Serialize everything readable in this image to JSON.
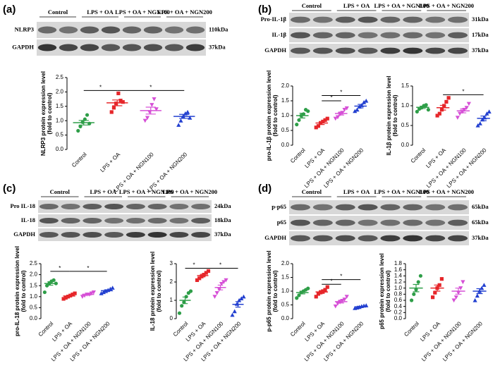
{
  "blots": [
    {
      "letter": "(a)",
      "groups": [
        "Control",
        "LPS + OA",
        "LPS + OA + NGN100",
        "LPS + OA + NGN200"
      ],
      "rows": [
        {
          "label": "NLRP3",
          "size": "110kDa"
        },
        {
          "label": "GAPDH",
          "size": "37kDa"
        }
      ]
    },
    {
      "letter": "(b)",
      "groups": [
        "Control",
        "LPS + OA",
        "LPS + OA + NGN100",
        "LPS + OA + NGN200"
      ],
      "rows": [
        {
          "label": "Pro-IL-1β",
          "size": "31kDa"
        },
        {
          "label": "IL-1β",
          "size": "17kDa"
        },
        {
          "label": "GAPDH",
          "size": "37kDa"
        }
      ]
    },
    {
      "letter": "(c)",
      "groups": [
        "Control",
        "LPS + OA",
        "LPS + OA + NGN100",
        "LPS + OA + NGN200"
      ],
      "rows": [
        {
          "label": "Pro IL-18",
          "size": "24kDa"
        },
        {
          "label": "IL-18",
          "size": "18kDa"
        },
        {
          "label": "GAPDH",
          "size": "37kDa"
        }
      ]
    },
    {
      "letter": "(d)",
      "groups": [
        "Control",
        "LPS + OA",
        "LPS + OA + NGN100",
        "LPS + OA + NGN200"
      ],
      "rows": [
        {
          "label": "p-p65",
          "size": "65kDa"
        },
        {
          "label": "p65",
          "size": "65kDa"
        },
        {
          "label": "GAPDH",
          "size": "37kDa"
        }
      ]
    }
  ],
  "chart_data": [
    {
      "type": "dot",
      "ylabel": [
        "NLRP3 protein expression level",
        "(fold to control)"
      ],
      "categories": [
        "Control",
        "LPS + OA",
        "LPS + OA + NGN100",
        "LPS + OA + NGN200"
      ],
      "colors": [
        "#2e9e48",
        "#e6262a",
        "#d650d6",
        "#2340d0"
      ],
      "markers": [
        "circle",
        "square",
        "triangle-down",
        "triangle"
      ],
      "values": [
        [
          0.65,
          0.8,
          0.95,
          1.05,
          1.2,
          0.9
        ],
        [
          1.3,
          1.45,
          1.6,
          1.95,
          1.7,
          1.65
        ],
        [
          1.0,
          1.1,
          1.3,
          1.55,
          1.75,
          1.4
        ],
        [
          0.85,
          1.0,
          1.15,
          1.25,
          1.3,
          1.1
        ]
      ],
      "means": [
        0.93,
        1.62,
        1.35,
        1.15
      ],
      "errors": [
        0.08,
        0.1,
        0.12,
        0.07
      ],
      "ylim": [
        0,
        2.5
      ],
      "yticks": [
        {
          "value": 0,
          "label": "0.0"
        },
        {
          "value": 0.5,
          "label": "0.5"
        },
        {
          "value": 1,
          "label": "1.0"
        },
        {
          "value": 1.5,
          "label": "1.5"
        },
        {
          "value": 2,
          "label": "2.0"
        },
        {
          "value": 2.5,
          "label": "2.5"
        }
      ],
      "significance": [
        {
          "label": "*",
          "from": 0,
          "to": 1,
          "y": 2.05
        },
        {
          "label": "*",
          "from": 1,
          "to": 3,
          "y": 2.05
        }
      ]
    },
    {
      "type": "dot",
      "ylabel": [
        "pro-IL-1β protein expression level",
        "(fold to control)"
      ],
      "categories": [
        "Control",
        "LPS + OA",
        "LPS + OA + NGN100",
        "LPS + OA + NGN200"
      ],
      "colors": [
        "#2e9e48",
        "#e6262a",
        "#d650d6",
        "#2340d0"
      ],
      "markers": [
        "circle",
        "square",
        "triangle-down",
        "triangle"
      ],
      "values": [
        [
          0.7,
          0.85,
          1.0,
          1.05,
          1.2,
          1.15
        ],
        [
          0.6,
          0.65,
          0.75,
          0.8,
          0.85,
          0.9
        ],
        [
          0.9,
          0.95,
          1.05,
          1.1,
          1.2,
          1.25
        ],
        [
          1.15,
          1.2,
          1.3,
          1.35,
          1.45,
          1.5
        ]
      ],
      "means": [
        1.0,
        0.75,
        1.07,
        1.32
      ],
      "errors": [
        0.08,
        0.05,
        0.05,
        0.06
      ],
      "ylim": [
        0,
        2
      ],
      "yticks": [
        {
          "value": 0,
          "label": "0.0"
        },
        {
          "value": 0.5,
          "label": "0.5"
        },
        {
          "value": 1,
          "label": "1.0"
        },
        {
          "value": 1.5,
          "label": "1.5"
        },
        {
          "value": 2,
          "label": "2.0"
        }
      ],
      "significance": [
        {
          "label": "*",
          "from": 1,
          "to": 2,
          "y": 1.5
        },
        {
          "label": "*",
          "from": 1,
          "to": 3,
          "y": 1.68
        }
      ]
    },
    {
      "type": "dot",
      "ylabel": [
        "IL-1β protein expression level",
        "(fold to control)"
      ],
      "categories": [
        "Control",
        "LPS + OA",
        "LPS + OA + NGN100",
        "LPS + OA + NGN200"
      ],
      "colors": [
        "#2e9e48",
        "#e6262a",
        "#d650d6",
        "#2340d0"
      ],
      "markers": [
        "circle",
        "square",
        "triangle-down",
        "triangle"
      ],
      "values": [
        [
          0.85,
          0.92,
          0.95,
          1.0,
          1.02,
          0.9
        ],
        [
          0.75,
          0.8,
          0.9,
          1.0,
          1.1,
          1.2
        ],
        [
          0.7,
          0.8,
          0.85,
          0.9,
          0.95,
          1.05
        ],
        [
          0.5,
          0.55,
          0.65,
          0.7,
          0.8,
          0.85
        ]
      ],
      "means": [
        0.96,
        0.95,
        0.87,
        0.68
      ],
      "errors": [
        0.03,
        0.06,
        0.05,
        0.06
      ],
      "ylim": [
        0,
        1.5
      ],
      "yticks": [
        {
          "value": 0,
          "label": "0.0"
        },
        {
          "value": 0.5,
          "label": "0.5"
        },
        {
          "value": 1,
          "label": "1.0"
        },
        {
          "value": 1.5,
          "label": "1.5"
        }
      ],
      "significance": [
        {
          "label": "*",
          "from": 1,
          "to": 3,
          "y": 1.28
        }
      ]
    },
    {
      "type": "dot",
      "ylabel": [
        "pro-IL-18 protein expression level",
        "(fold to control)"
      ],
      "categories": [
        "Control",
        "LPS + OA",
        "LPS + OA + NGN100",
        "LPS + OA + NGN200"
      ],
      "colors": [
        "#2e9e48",
        "#e6262a",
        "#d650d6",
        "#2340d0"
      ],
      "markers": [
        "circle",
        "square",
        "triangle-down",
        "triangle"
      ],
      "values": [
        [
          1.2,
          1.5,
          1.6,
          1.7,
          1.75,
          1.6
        ],
        [
          0.9,
          0.95,
          1.0,
          1.05,
          1.1,
          1.15
        ],
        [
          1.0,
          1.05,
          1.1,
          1.1,
          1.15,
          1.2
        ],
        [
          1.15,
          1.2,
          1.25,
          1.3,
          1.35,
          1.4
        ]
      ],
      "means": [
        1.6,
        1.03,
        1.1,
        1.27
      ],
      "errors": [
        0.08,
        0.04,
        0.03,
        0.04
      ],
      "ylim": [
        0,
        2.5
      ],
      "yticks": [
        {
          "value": 0,
          "label": "0.0"
        },
        {
          "value": 0.5,
          "label": "0.5"
        },
        {
          "value": 1,
          "label": "1.0"
        },
        {
          "value": 1.5,
          "label": "1.5"
        },
        {
          "value": 2,
          "label": "2.0"
        },
        {
          "value": 2.5,
          "label": "2.5"
        }
      ],
      "significance": [
        {
          "label": "*",
          "from": 0,
          "to": 1,
          "y": 2.15
        },
        {
          "label": "*",
          "from": 1,
          "to": 3,
          "y": 2.15
        }
      ]
    },
    {
      "type": "dot",
      "ylabel": [
        "IL-18 protein expression level",
        "(fold to control)"
      ],
      "categories": [
        "Control",
        "LPS + OA",
        "LPS + OA + NGN100",
        "LPS + OA + NGN200"
      ],
      "colors": [
        "#2e9e48",
        "#e6262a",
        "#d650d6",
        "#2340d0"
      ],
      "markers": [
        "circle",
        "square",
        "triangle-down",
        "triangle"
      ],
      "values": [
        [
          0.3,
          0.7,
          0.9,
          1.2,
          1.4,
          1.5
        ],
        [
          2.1,
          2.2,
          2.3,
          2.4,
          2.5,
          2.6
        ],
        [
          1.2,
          1.4,
          1.6,
          1.9,
          2.0,
          2.1
        ],
        [
          0.2,
          0.4,
          0.8,
          1.0,
          1.1,
          1.2
        ]
      ],
      "means": [
        1.0,
        2.35,
        1.7,
        0.78
      ],
      "errors": [
        0.18,
        0.07,
        0.13,
        0.15
      ],
      "ylim": [
        0,
        3
      ],
      "yticks": [
        0,
        1,
        2,
        3
      ],
      "significance": [
        {
          "label": "*",
          "from": 0,
          "to": 1,
          "y": 2.75
        },
        {
          "label": "*",
          "from": 1,
          "to": 3,
          "y": 2.75
        }
      ]
    },
    {
      "type": "dot",
      "ylabel": [
        "p-p65 protein expression level",
        "(fold to control)"
      ],
      "categories": [
        "Control",
        "LPS + OA",
        "LPS + OA + NGN100",
        "LPS + OA + NGN200"
      ],
      "colors": [
        "#2e9e48",
        "#e6262a",
        "#d650d6",
        "#2340d0"
      ],
      "markers": [
        "circle",
        "square",
        "triangle-down",
        "triangle"
      ],
      "values": [
        [
          0.75,
          0.85,
          0.95,
          1.0,
          1.05,
          1.1
        ],
        [
          0.8,
          0.9,
          0.95,
          1.0,
          1.05,
          1.15
        ],
        [
          0.45,
          0.55,
          0.6,
          0.65,
          0.7,
          0.8
        ],
        [
          0.38,
          0.4,
          0.42,
          0.45,
          0.47,
          0.48
        ]
      ],
      "means": [
        0.95,
        0.97,
        0.62,
        0.43
      ],
      "errors": [
        0.05,
        0.05,
        0.05,
        0.02
      ],
      "ylim": [
        0,
        2
      ],
      "yticks": [
        {
          "value": 0,
          "label": "0.0"
        },
        {
          "value": 0.5,
          "label": "0.5"
        },
        {
          "value": 1,
          "label": "1.0"
        },
        {
          "value": 1.5,
          "label": "1.5"
        },
        {
          "value": 2,
          "label": "2.0"
        }
      ],
      "significance": [
        {
          "label": "*",
          "from": 1,
          "to": 2,
          "y": 1.25
        },
        {
          "label": "*",
          "from": 1,
          "to": 3,
          "y": 1.42
        }
      ]
    },
    {
      "type": "dot",
      "ylabel": [
        "p65 protein expression level",
        "(fold to control)"
      ],
      "categories": [
        "Control",
        "LPS + OA",
        "LPS + OA + NGN100",
        "LPS + OA + NGN200"
      ],
      "colors": [
        "#2e9e48",
        "#e6262a",
        "#d650d6",
        "#2340d0"
      ],
      "markers": [
        "circle",
        "square",
        "triangle-down",
        "triangle"
      ],
      "values": [
        [
          0.6,
          0.8,
          0.95,
          1.2,
          1.4
        ],
        [
          0.7,
          0.85,
          1.0,
          1.1,
          1.3
        ],
        [
          0.6,
          0.7,
          0.85,
          1.0,
          1.2
        ],
        [
          0.6,
          0.75,
          0.9,
          1.0,
          1.1
        ]
      ],
      "means": [
        1.0,
        1.0,
        0.9,
        0.9
      ],
      "errors": [
        0.12,
        0.1,
        0.1,
        0.08
      ],
      "ylim": [
        0,
        1.8
      ],
      "yticks": [
        {
          "value": 0,
          "label": "0.0"
        },
        {
          "value": 0.2,
          "label": "0.2"
        },
        {
          "value": 0.4,
          "label": "0.4"
        },
        {
          "value": 0.6,
          "label": "0.6"
        },
        {
          "value": 0.8,
          "label": "0.8"
        },
        {
          "value": 1,
          "label": "1.0"
        },
        {
          "value": 1.2,
          "label": "1.2"
        },
        {
          "value": 1.4,
          "label": "1.4"
        },
        {
          "value": 1.6,
          "label": "1.6"
        },
        {
          "value": 1.8,
          "label": "1.8"
        }
      ],
      "significance": []
    }
  ]
}
